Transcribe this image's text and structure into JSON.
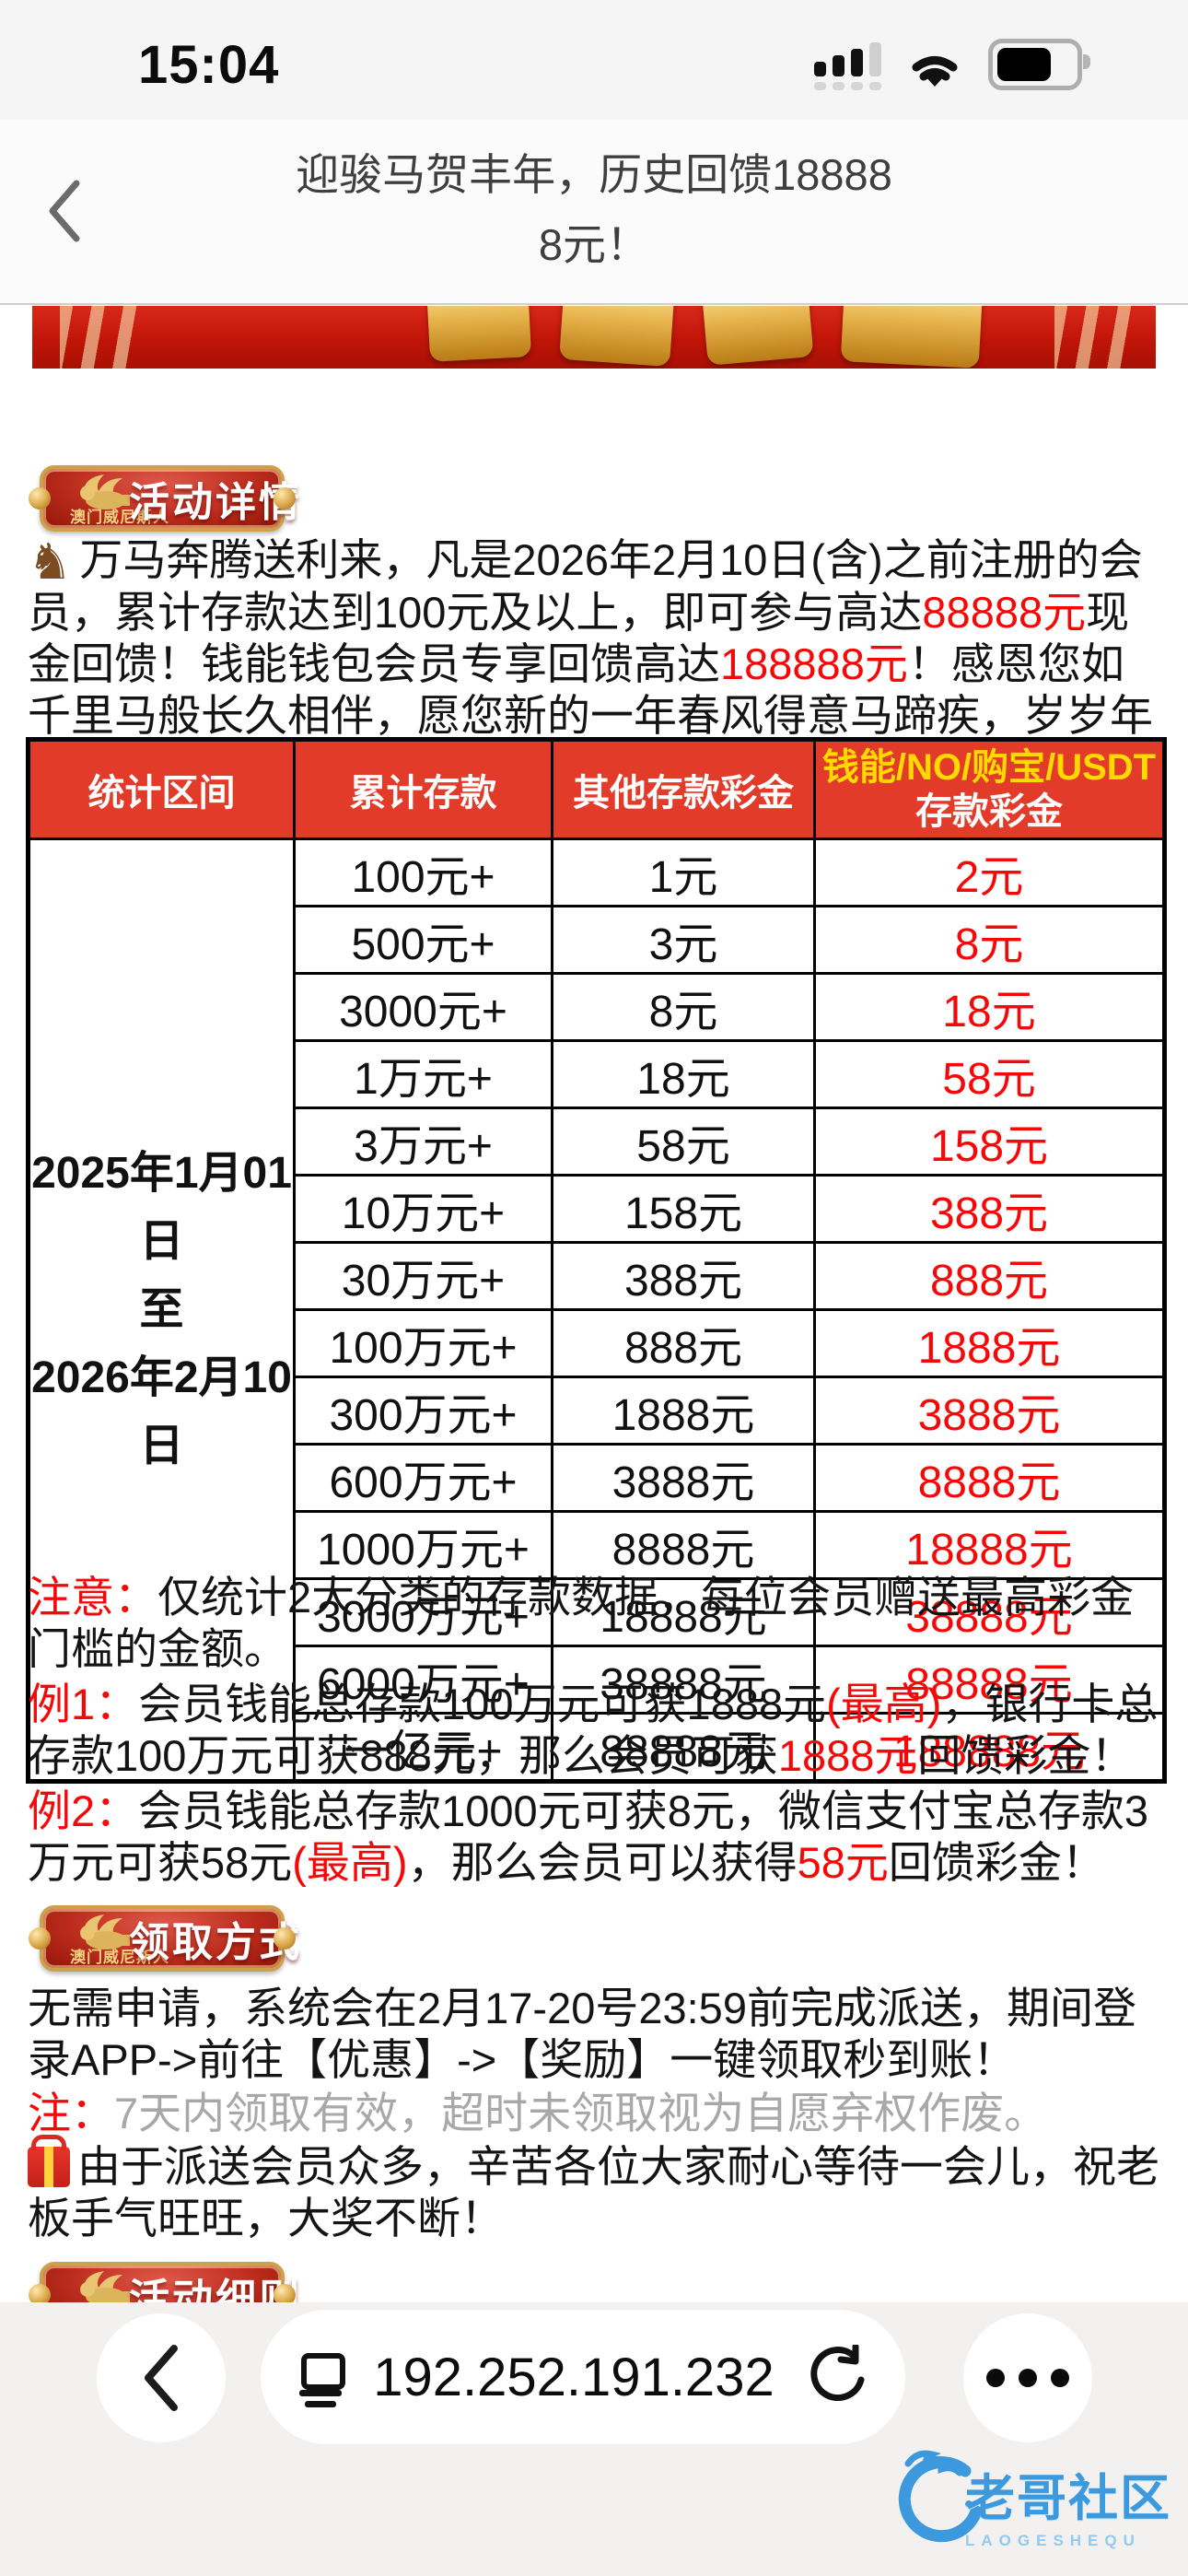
{
  "status_bar": {
    "time": "15:04"
  },
  "nav": {
    "title_line1": "迎骏马贺丰年，历史回馈18888",
    "title_line2": "8元！"
  },
  "badges": {
    "brand": "澳门威尼斯人",
    "details_label": "活动详情",
    "claim_label": "领取方式",
    "rules_label": "活动细则"
  },
  "details_paragraph": {
    "segments": [
      {
        "i": "horse"
      },
      {
        "t": "万马奔腾送利来，凡是2026年2月10日(含)之前注册的会员，累计存款达到100元及以上，即可参与高达"
      },
      {
        "t": "88888元",
        "c": "red"
      },
      {
        "t": "现金回馈！钱能钱包会员专享回馈高达"
      },
      {
        "t": "188888元",
        "c": "red"
      },
      {
        "t": "！感恩您如千里马般长久相伴，愿您新的一年春风得意马蹄疾，岁岁年年有余庆"
      },
      {
        "i": "heart"
      }
    ]
  },
  "table": {
    "headers": {
      "col1": "统计区间",
      "col2": "累计存款",
      "col3": "其他存款彩金",
      "col4_yellow": "钱能/NO/购宝/USDT",
      "col4_white": "存款彩金"
    },
    "period": {
      "from": "2025年1月01日",
      "mid": "至",
      "to": "2026年2月10日"
    },
    "rows": [
      {
        "deposit": "100元+",
        "other_bonus": "1元",
        "wallet_bonus": "2元"
      },
      {
        "deposit": "500元+",
        "other_bonus": "3元",
        "wallet_bonus": "8元"
      },
      {
        "deposit": "3000元+",
        "other_bonus": "8元",
        "wallet_bonus": "18元"
      },
      {
        "deposit": "1万元+",
        "other_bonus": "18元",
        "wallet_bonus": "58元"
      },
      {
        "deposit": "3万元+",
        "other_bonus": "58元",
        "wallet_bonus": "158元"
      },
      {
        "deposit": "10万元+",
        "other_bonus": "158元",
        "wallet_bonus": "388元"
      },
      {
        "deposit": "30万元+",
        "other_bonus": "388元",
        "wallet_bonus": "888元"
      },
      {
        "deposit": "100万元+",
        "other_bonus": "888元",
        "wallet_bonus": "1888元"
      },
      {
        "deposit": "300万元+",
        "other_bonus": "1888元",
        "wallet_bonus": "3888元"
      },
      {
        "deposit": "600万元+",
        "other_bonus": "3888元",
        "wallet_bonus": "8888元"
      },
      {
        "deposit": "1000万元+",
        "other_bonus": "8888元",
        "wallet_bonus": "18888元"
      },
      {
        "deposit": "3000万元+",
        "other_bonus": "18888元",
        "wallet_bonus": "38888元"
      },
      {
        "deposit": "6000万元+",
        "other_bonus": "38888元",
        "wallet_bonus": "88888元"
      },
      {
        "deposit": "一亿元+",
        "other_bonus": "88888元",
        "wallet_bonus": "188888元"
      }
    ]
  },
  "notes": {
    "notice": {
      "segments": [
        {
          "t": "注意：",
          "c": "red"
        },
        {
          "t": "仅统计2大分类的存款数据，每位会员赠送最高彩金门槛的金额。"
        }
      ]
    },
    "example1": {
      "segments": [
        {
          "t": "例1：",
          "c": "red"
        },
        {
          "t": "会员钱能总存款100万元可获1888元"
        },
        {
          "t": "(最高)",
          "c": "red"
        },
        {
          "t": "，银行卡总存款100万元可获888元，那么会员可获"
        },
        {
          "t": "1888元",
          "c": "red"
        },
        {
          "t": "回馈彩金！"
        }
      ]
    },
    "example2": {
      "segments": [
        {
          "t": "例2：",
          "c": "red"
        },
        {
          "t": "会员钱能总存款1000元可获8元，微信支付宝总存款3万元可获58元"
        },
        {
          "t": "(最高)",
          "c": "red"
        },
        {
          "t": "，那么会员可以获得"
        },
        {
          "t": "58元",
          "c": "red"
        },
        {
          "t": "回馈彩金！"
        }
      ]
    }
  },
  "claim_section": {
    "how": {
      "segments": [
        {
          "t": "无需申请，系统会在2月17-20号23:59前完成派送，期间登录APP->前往【优惠】->【奖励】一键领取秒到账！"
        }
      ]
    },
    "note": {
      "segments": [
        {
          "t": "注：",
          "c": "red"
        },
        {
          "t": "7天内领取有效，超时未领取视为自愿弃权作废。",
          "c": "gray"
        }
      ]
    },
    "patience": {
      "segments": [
        {
          "i": "gift"
        },
        {
          "t": "由于派送会员众多，辛苦各位大家耐心等待一会儿，祝老板手气旺旺，大奖不断！"
        }
      ]
    }
  },
  "toolbar": {
    "url": "192.252.191.232"
  },
  "watermark": {
    "title": "老哥社区",
    "subtitle": "LAOGESHEQU"
  },
  "colors": {
    "table_header_bg": "#e33b2a",
    "emphasis_red": "#f70808",
    "header_yellow": "#ffd900",
    "period_red": "#e5352b",
    "watermark_blue": "#2f93dd"
  }
}
